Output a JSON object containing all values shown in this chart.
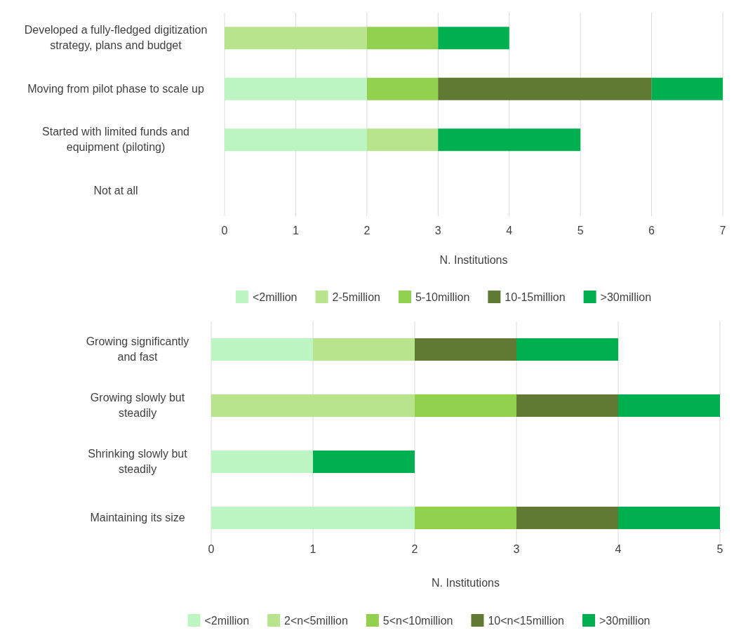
{
  "chart_data": [
    {
      "type": "bar",
      "orientation": "horizontal",
      "stacked": true,
      "categories": [
        "Developed a fully-fledged digitization strategy, plans and budget",
        "Moving from pilot phase to scale up",
        "Started with limited funds and equipment (piloting)",
        "Not at all"
      ],
      "xlabel": "N. Institutions",
      "xlim": [
        0,
        7
      ],
      "xticks": [
        0,
        1,
        2,
        3,
        4,
        5,
        6,
        7
      ],
      "grid": "x",
      "legend": "bottom",
      "series": [
        {
          "name": "<2million",
          "color": "#bdf5c2",
          "values": [
            0,
            2,
            2,
            0
          ]
        },
        {
          "name": "2-5million",
          "color": "#b9e48e",
          "values": [
            2,
            0,
            1,
            0
          ]
        },
        {
          "name": "5-10million",
          "color": "#92d050",
          "values": [
            1,
            1,
            0,
            0
          ]
        },
        {
          "name": "10-15million",
          "color": "#607a33",
          "values": [
            0,
            3,
            0,
            0
          ]
        },
        {
          "name": ">30million",
          "color": "#00b050",
          "values": [
            1,
            1,
            2,
            0
          ]
        }
      ]
    },
    {
      "type": "bar",
      "orientation": "horizontal",
      "stacked": true,
      "categories": [
        "Growing significantly and fast",
        "Growing slowly but steadily",
        "Shrinking slowly but steadily",
        "Maintaining its size"
      ],
      "xlabel": "N. Institutions",
      "xlim": [
        0,
        5
      ],
      "xticks": [
        0,
        1,
        2,
        3,
        4,
        5
      ],
      "grid": "x",
      "legend": "bottom",
      "series": [
        {
          "name": "<2million",
          "color": "#bdf5c2",
          "values": [
            1,
            0,
            1,
            2
          ]
        },
        {
          "name": "2<n<5million",
          "color": "#b9e48e",
          "values": [
            1,
            2,
            0,
            0
          ]
        },
        {
          "name": "5<n<10million",
          "color": "#92d050",
          "values": [
            0,
            1,
            0,
            1
          ]
        },
        {
          "name": "10<n<15million",
          "color": "#607a33",
          "values": [
            1,
            1,
            0,
            1
          ]
        },
        {
          "name": ">30million",
          "color": "#00b050",
          "values": [
            1,
            1,
            1,
            1
          ]
        }
      ]
    }
  ]
}
